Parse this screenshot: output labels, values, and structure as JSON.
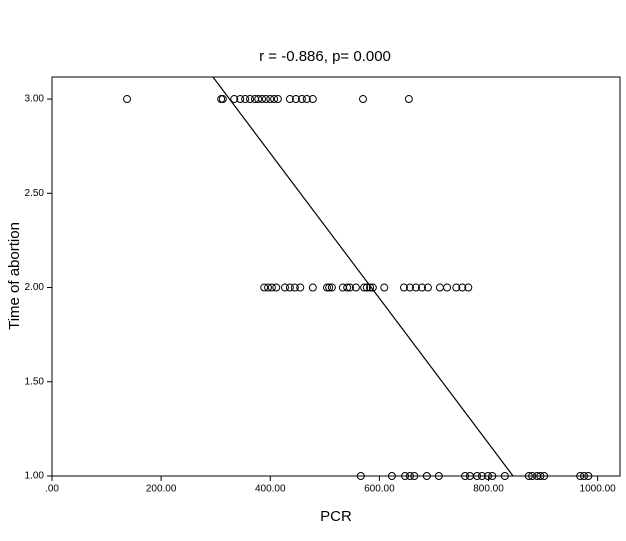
{
  "chart_data": {
    "type": "scatter",
    "title": "r = -0.886, p= 0.000",
    "x_label": "PCR",
    "y_label": "Time of abortion",
    "x": [
      137.5,
      310,
      313,
      334,
      345,
      354,
      363,
      372,
      378,
      385,
      392,
      400,
      407,
      414,
      436,
      447,
      458,
      467,
      478,
      570,
      654,
      389,
      396,
      403,
      411,
      427,
      436,
      445,
      455,
      478,
      504,
      508,
      513,
      533,
      541,
      546,
      557,
      572,
      577,
      583,
      588,
      609,
      645,
      656,
      667,
      678,
      689,
      711,
      724,
      741,
      752,
      763,
      566,
      623,
      647,
      656,
      664,
      687,
      709,
      757,
      766,
      779,
      788,
      799,
      807,
      830,
      874,
      880,
      889,
      895,
      902,
      968,
      975,
      983
    ],
    "y": [
      3,
      3,
      3,
      3,
      3,
      3,
      3,
      3,
      3,
      3,
      3,
      3,
      3,
      3,
      3,
      3,
      3,
      3,
      3,
      3,
      3,
      2,
      2,
      2,
      2,
      2,
      2,
      2,
      2,
      2,
      2,
      2,
      2,
      2,
      2,
      2,
      2,
      2,
      2,
      2,
      2,
      2,
      2,
      2,
      2,
      2,
      2,
      2,
      2,
      2,
      2,
      2,
      1,
      1,
      1,
      1,
      1,
      1,
      1,
      1,
      1,
      1,
      1,
      1,
      1,
      1,
      1,
      1,
      1,
      1,
      1,
      1,
      1,
      1
    ],
    "color": "#000000",
    "fit_line": {
      "x": [
        295,
        845
      ],
      "y": [
        3.117,
        1.0
      ]
    },
    "xlim": [
      0,
      1041
    ],
    "ylim": [
      1,
      3.117
    ],
    "xticks": [
      {
        "value": 0,
        "label": ".00"
      },
      {
        "value": 200,
        "label": "200.00"
      },
      {
        "value": 400,
        "label": "400.00"
      },
      {
        "value": 600,
        "label": "600.00"
      },
      {
        "value": 800,
        "label": "800.00"
      },
      {
        "value": 1000,
        "label": "1000.00"
      }
    ],
    "yticks": [
      {
        "value": 1,
        "label": "1.00"
      },
      {
        "value": 1.5,
        "label": "1.50"
      },
      {
        "value": 2,
        "label": "2.00"
      },
      {
        "value": 2.5,
        "label": "2.50"
      },
      {
        "value": 3,
        "label": "3.00"
      }
    ]
  }
}
